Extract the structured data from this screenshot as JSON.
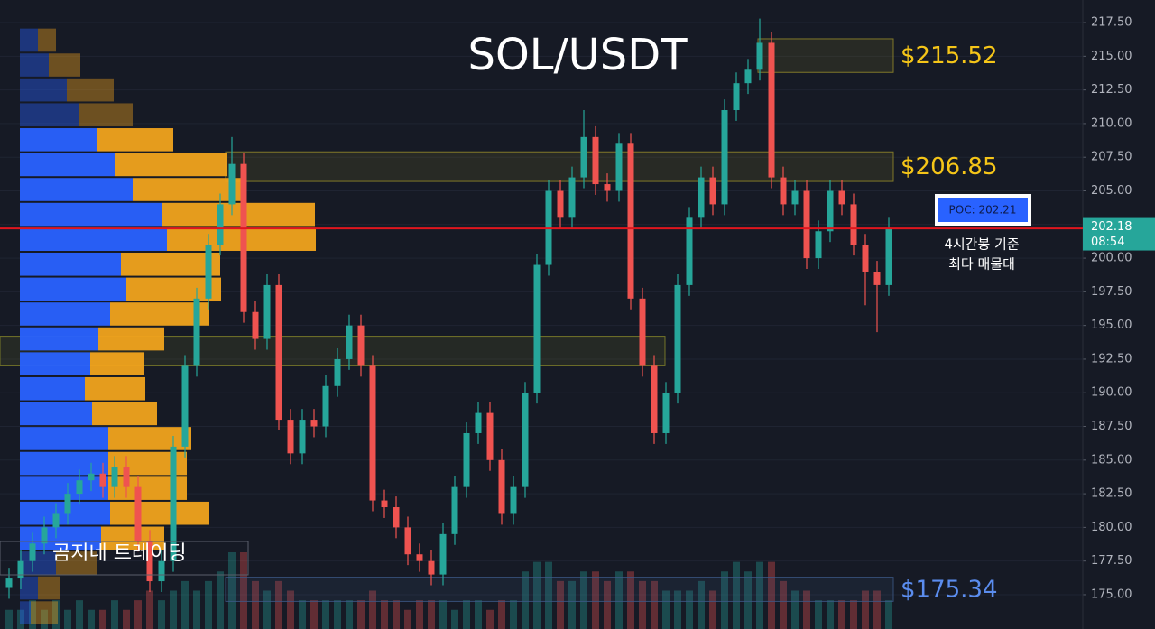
{
  "chart_data": {
    "type": "candlestick",
    "title": "SOL/USDT",
    "watermark": "곰지네 트레이딩",
    "up_color": "#26a69a",
    "down_color": "#ef5350",
    "grid": true,
    "ylim": [
      172.45,
      219.18
    ],
    "yticks": [
      {
        "value": 175,
        "label": "175.00"
      },
      {
        "value": 177.5,
        "label": "177.50"
      },
      {
        "value": 180,
        "label": "180.00"
      },
      {
        "value": 182.5,
        "label": "182.50"
      },
      {
        "value": 185,
        "label": "185.00"
      },
      {
        "value": 187.5,
        "label": "187.50"
      },
      {
        "value": 190,
        "label": "190.00"
      },
      {
        "value": 192.5,
        "label": "192.50"
      },
      {
        "value": 195,
        "label": "195.00"
      },
      {
        "value": 197.5,
        "label": "197.50"
      },
      {
        "value": 200,
        "label": "200.00"
      },
      {
        "value": 202.5,
        "label": "202.50"
      },
      {
        "value": 205,
        "label": "205.00"
      },
      {
        "value": 207.5,
        "label": "207.50"
      },
      {
        "value": 210,
        "label": "210.00"
      },
      {
        "value": 212.5,
        "label": "212.50"
      },
      {
        "value": 215,
        "label": "215.00"
      },
      {
        "value": 217.5,
        "label": "217.50"
      }
    ],
    "open": [
      175.5,
      176.2,
      177.5,
      178.8,
      180,
      181,
      182.5,
      183.5,
      184,
      183,
      184.5,
      183,
      179,
      176,
      177.5,
      186,
      192,
      197,
      201,
      204,
      207,
      196,
      194,
      198,
      188,
      185.5,
      188,
      187.5,
      190.5,
      192.5,
      195,
      192,
      182,
      181.5,
      180,
      178,
      177.5,
      176.5,
      179.5,
      183,
      187,
      188.5,
      185,
      181,
      183,
      190,
      199.5,
      205,
      203,
      206,
      209,
      205.5,
      205,
      208.5,
      197,
      192,
      187,
      190,
      198,
      203,
      206,
      204,
      211,
      213,
      214,
      216,
      206,
      204,
      205,
      200,
      202,
      205,
      204,
      201,
      199,
      198
    ],
    "high": [
      177,
      178.3,
      179.6,
      180.8,
      181.8,
      183.3,
      184.3,
      184.8,
      184.8,
      185.3,
      185.3,
      183.8,
      179.8,
      178.3,
      186.8,
      192.8,
      197.8,
      201.8,
      204.8,
      209,
      207.8,
      196.8,
      198.8,
      198.8,
      188.8,
      188.8,
      188.8,
      191.3,
      193.3,
      195.8,
      195.8,
      192.8,
      182.8,
      182.3,
      180.8,
      178.8,
      178.3,
      180.3,
      183.8,
      187.8,
      189.3,
      189.3,
      185.8,
      183.8,
      190.8,
      200.3,
      205.8,
      205.8,
      206.8,
      211,
      209.8,
      206.3,
      209.3,
      209.3,
      197.8,
      192.8,
      190.8,
      198.8,
      203.8,
      206.8,
      206.8,
      211.8,
      213.8,
      214.8,
      217.8,
      216.8,
      206.8,
      205.8,
      205.8,
      202.8,
      205.8,
      205.8,
      204.8,
      201.8,
      199.8,
      203
    ],
    "low": [
      174.7,
      175.4,
      176.7,
      178,
      179.2,
      180.2,
      181.7,
      182.7,
      182.2,
      182.2,
      182.2,
      178.2,
      175.2,
      175.2,
      176.7,
      185.2,
      191.2,
      196.2,
      200.2,
      203.2,
      195.2,
      193.2,
      193.2,
      187.2,
      184.7,
      184.7,
      186.7,
      186.7,
      189.7,
      191.7,
      191.2,
      181.2,
      180.7,
      179.2,
      177.2,
      176.7,
      175.7,
      175.7,
      178.7,
      182.2,
      186.2,
      184.2,
      180.2,
      180.2,
      182.2,
      189.2,
      198.7,
      202.2,
      202.2,
      205.2,
      204.7,
      204.2,
      204.2,
      196.2,
      191.2,
      186.2,
      186.2,
      189.2,
      197.2,
      202.2,
      203.2,
      203.2,
      210.2,
      212.2,
      213.2,
      205.2,
      203.2,
      203.2,
      199.2,
      199.2,
      201.2,
      203.2,
      200.2,
      196.5,
      194.5,
      197.2
    ],
    "close": [
      176.2,
      177.5,
      178.8,
      180,
      181,
      182.5,
      183.5,
      184,
      183,
      184.5,
      183,
      179,
      176,
      177.5,
      186,
      192,
      197,
      201,
      204,
      207,
      196,
      194,
      198,
      188,
      185.5,
      188,
      187.5,
      190.5,
      192.5,
      195,
      192,
      182,
      181.5,
      180,
      178,
      177.5,
      176.5,
      179.5,
      183,
      187,
      188.5,
      185,
      181,
      183,
      190,
      199.5,
      205,
      203,
      206,
      209,
      205.5,
      205,
      208.5,
      197,
      192,
      187,
      190,
      198,
      203,
      206,
      204,
      211,
      213,
      214,
      216,
      206,
      204,
      205,
      200,
      202,
      205,
      204,
      201,
      199,
      198,
      202.18
    ],
    "volume": [
      2,
      2,
      3,
      2,
      3,
      2,
      3,
      2,
      2,
      3,
      2,
      3,
      4,
      3,
      4,
      5,
      4,
      5,
      6,
      8,
      8,
      5,
      4,
      5,
      4,
      3,
      3,
      3,
      3,
      3,
      3,
      4,
      3,
      3,
      2,
      3,
      3,
      3,
      2,
      3,
      3,
      2,
      3,
      3,
      6,
      7,
      7,
      5,
      5,
      6,
      6,
      5,
      6,
      6,
      5,
      5,
      4,
      4,
      4,
      5,
      4,
      6,
      7,
      6,
      7,
      7,
      5,
      4,
      4,
      3,
      3,
      3,
      3,
      4,
      4,
      3
    ],
    "profile": {
      "prices": [
        216.2,
        214.35,
        212.5,
        210.65,
        208.8,
        206.95,
        205.1,
        203.25,
        201.4,
        199.55,
        197.7,
        195.85,
        194.0,
        192.15,
        190.3,
        188.45,
        186.6,
        184.75,
        182.9,
        181.05,
        179.2,
        177.35,
        175.5,
        173.65
      ],
      "buy": [
        20,
        32,
        52,
        65,
        85,
        105,
        125,
        157,
        163,
        112,
        118,
        100,
        87,
        78,
        72,
        80,
        98,
        98,
        98,
        100,
        90,
        40,
        20,
        12
      ],
      "sell": [
        20,
        35,
        52,
        60,
        85,
        125,
        125,
        170,
        165,
        110,
        105,
        110,
        73,
        60,
        67,
        72,
        92,
        87,
        87,
        110,
        70,
        45,
        25,
        30
      ]
    },
    "zones": [
      {
        "low": 213.8,
        "high": 216.3,
        "label": "$215.52"
      },
      {
        "low": 205.7,
        "high": 207.9,
        "label": "$206.85"
      },
      {
        "low": 192.0,
        "high": 194.2
      },
      {
        "low": 174.5,
        "high": 176.3,
        "label": "$175.34"
      }
    ],
    "poc": {
      "value": 202.21,
      "label": "POC: 202.21"
    },
    "note": [
      "4시간봉 기준",
      "최다 매물대"
    ],
    "last_price": 202.18,
    "countdown": "08:54"
  }
}
